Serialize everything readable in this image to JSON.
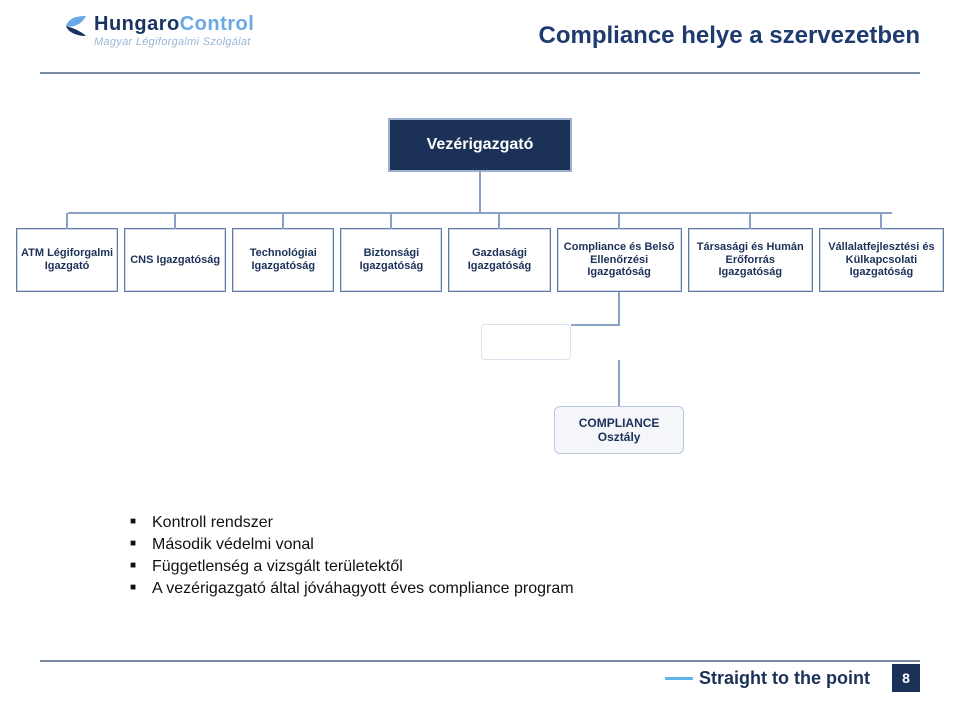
{
  "brand": {
    "name_parts": {
      "a": "Hungaro",
      "b": "Control"
    },
    "subtitle": "Magyar Légiforgalmi Szolgálat",
    "colors": {
      "primary": "#18335e",
      "accent": "#6aa8e6",
      "sub": "#9bb5d6"
    }
  },
  "page": {
    "title": "Compliance helye a szervezetben",
    "title_color": "#1f3a6e",
    "number": "8"
  },
  "footer": {
    "slogan": "Straight to the point"
  },
  "org": {
    "root": "Vezérigazgató",
    "root_bg": "#1c3158",
    "root_text": "#ffffff",
    "line_color": "#8aa0c4",
    "leaf_text_color": "#1c3158",
    "leaves": [
      "ATM Légiforgalmi Igazgató",
      "CNS Igazgatóság",
      "Technológiai Igazgatóság",
      "Biztonsági Igazgatóság",
      "Gazdasági Igazgatóság",
      "Compliance és Belső Ellenőrzési Igazgatóság",
      "Társasági és Humán Erőforrás Igazgatóság",
      "Vállalatfejlesztési és Külkapcsolati Igazgatóság"
    ],
    "sub": {
      "label_line1": "COMPLIANCE",
      "label_line2": "Osztály"
    }
  },
  "bullets": [
    "Kontroll rendszer",
    "Második védelmi vonal",
    "Függetlenség a vizsgált területektől",
    "A vezérigazgató által jóváhagyott éves compliance program"
  ]
}
